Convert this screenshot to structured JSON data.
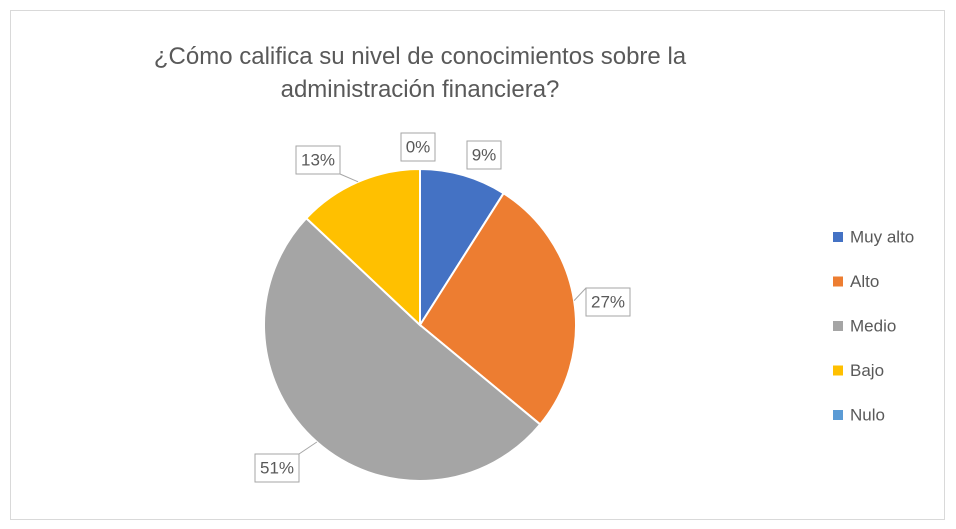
{
  "chart_data": {
    "type": "pie",
    "title": "¿Cómo califica su nivel de conocimientos sobre la administración financiera?",
    "categories": [
      "Muy alto",
      "Alto",
      "Medio",
      "Bajo",
      "Nulo"
    ],
    "values": [
      9,
      27,
      51,
      13,
      0
    ],
    "value_labels": [
      "9%",
      "27%",
      "51%",
      "13%",
      "0%"
    ],
    "colors": [
      "#4472c4",
      "#ed7d31",
      "#a5a5a5",
      "#ffc000",
      "#5b9bd5"
    ],
    "legend": "right"
  }
}
